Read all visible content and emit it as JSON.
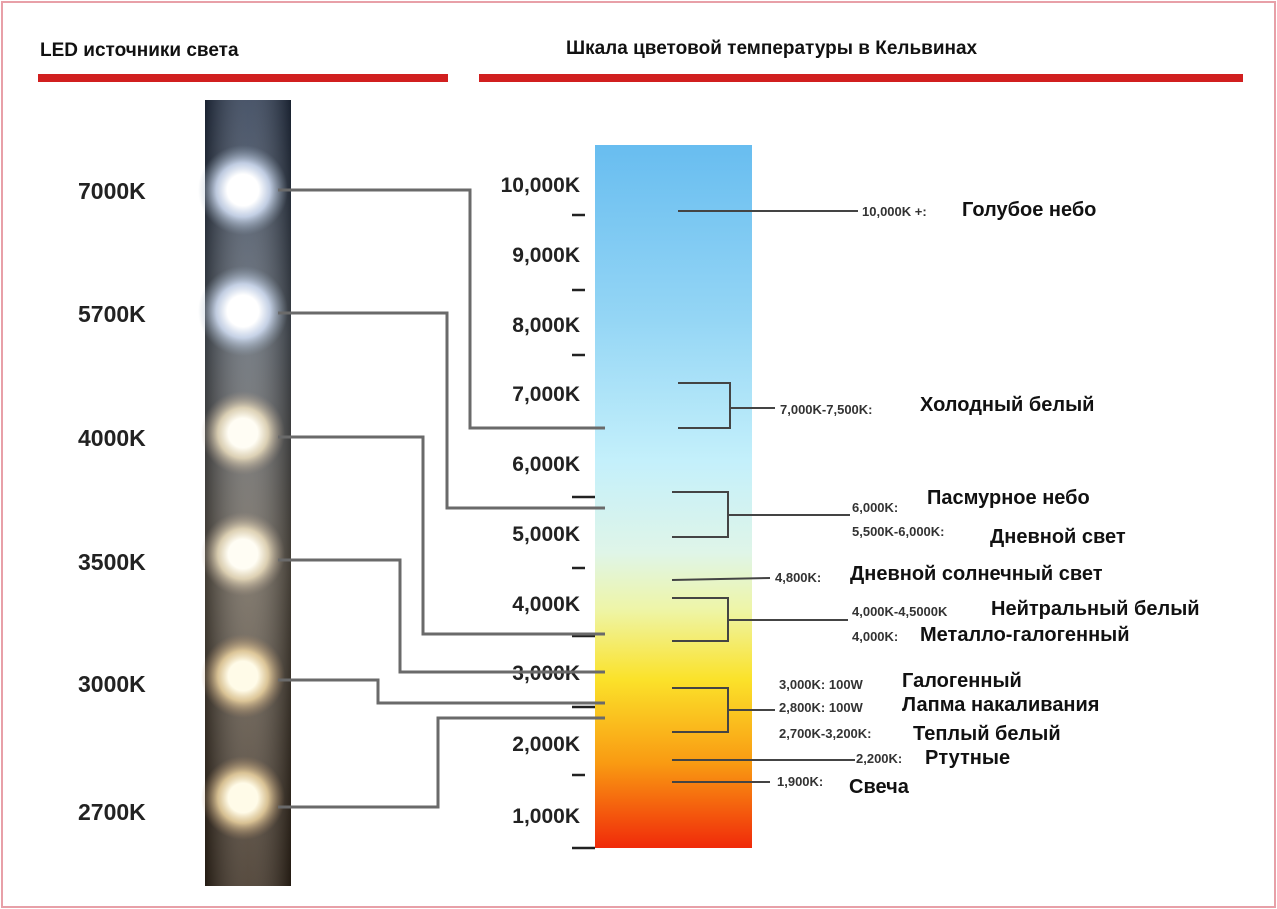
{
  "headers": {
    "left": "LED источники света",
    "right": "Шкала цветовой температуры в Кельвинах"
  },
  "colors": {
    "accent_red": "#d11f1f",
    "frame": "#e8a0a8"
  },
  "led_labels": [
    "7000K",
    "5700K",
    "4000K",
    "3500K",
    "3000K",
    "2700K"
  ],
  "scale_ticks": [
    "10,000K",
    "9,000K",
    "8,000K",
    "7,000K",
    "6,000K",
    "5,000K",
    "4,000K",
    "3,000K",
    "2,000K",
    "1,000K"
  ],
  "annotations": [
    {
      "value": "10,000K +:",
      "label": "Голубое небо"
    },
    {
      "value": "7,000K-7,500K:",
      "label": "Холодный белый"
    },
    {
      "value": "6,000K:",
      "label": "Пасмурное небо"
    },
    {
      "value": "5,500K-6,000K:",
      "label": "Дневной свет"
    },
    {
      "value": "4,800K:",
      "label": "Дневной солнечный свет"
    },
    {
      "value": "4,000K-4,5000K",
      "label": "Нейтральный белый"
    },
    {
      "value": "4,000K:",
      "label": "Металло-галогенный"
    },
    {
      "value": "3,000K: 100W",
      "label": "Галогенный"
    },
    {
      "value": "2,800K: 100W",
      "label": "Лапма накаливания"
    },
    {
      "value": "2,700K-3,200K:",
      "label": "Теплый белый"
    },
    {
      "value": "2,200K:",
      "label": "Ртутные"
    },
    {
      "value": "1,900K:",
      "label": "Свеча"
    }
  ]
}
